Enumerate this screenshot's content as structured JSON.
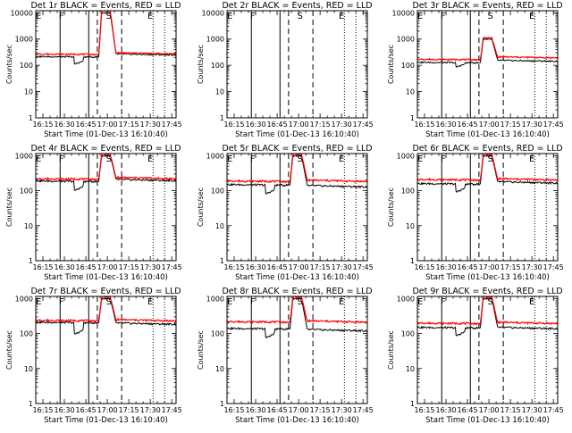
{
  "chart_data": {
    "type": "line",
    "x_tick_labels": [
      "16:15",
      "16:30",
      "16:45",
      "17:00",
      "17:15",
      "17:30",
      "17:45"
    ],
    "x_tick_minutes": [
      15,
      30,
      45,
      60,
      75,
      90,
      105
    ],
    "xlim_minutes": [
      10,
      108
    ],
    "xlabel": "Start Time (01-Dec-13 16:10:40)",
    "ylabel": "Counts/sec",
    "yscale": "log",
    "y_tick_labels": [
      "1",
      "10",
      "100",
      "1000"
    ],
    "y_tick_values": [
      1,
      10,
      100,
      1000
    ],
    "colors": {
      "events": "#000000",
      "lld": "#ff0000"
    },
    "flag_labels": [
      "E",
      "F",
      "S",
      "E"
    ],
    "flag_minutes": [
      12,
      28,
      61,
      90
    ],
    "panels": [
      {
        "title": "Det 1r  BLACK = Events, RED = LLD",
        "ylim": [
          1,
          12000
        ],
        "y_tick_labels": [
          "1",
          "10",
          "100",
          "1000",
          "10000"
        ],
        "y_tick_values": [
          1,
          10,
          100,
          1000,
          10000
        ],
        "vlines": {
          "solid": [
            27,
            47
          ],
          "dashed": [
            53,
            70
          ],
          "dotted": [
            92,
            100
          ]
        },
        "events": {
          "base": 215,
          "dip_level": 110,
          "dip": [
            37,
            43
          ],
          "peak_level": 10000,
          "peak": [
            56,
            62
          ],
          "tail": 270
        },
        "lld": {
          "base": 270,
          "peak_level": 12000,
          "tail": 300
        }
      },
      {
        "title": "Det 2r  BLACK = Events, RED = LLD",
        "ylim": [
          1,
          12000
        ],
        "y_tick_labels": [
          "1",
          "10",
          "100",
          "1000",
          "10000"
        ],
        "y_tick_values": [
          1,
          10,
          100,
          1000,
          10000
        ],
        "vlines": {
          "solid": [
            27,
            47
          ],
          "dashed": [
            53,
            70
          ],
          "dotted": [
            92,
            100
          ]
        },
        "events": null,
        "lld": null
      },
      {
        "title": "Det 3r  BLACK = Events, RED = LLD",
        "ylim": [
          1,
          12000
        ],
        "y_tick_labels": [
          "1",
          "10",
          "100",
          "1000",
          "10000"
        ],
        "y_tick_values": [
          1,
          10,
          100,
          1000,
          10000
        ],
        "vlines": {
          "solid": [
            27,
            47
          ],
          "dashed": [
            53,
            70
          ],
          "dotted": [
            92,
            100
          ]
        },
        "events": {
          "base": 130,
          "dip_level": 85,
          "dip": [
            37,
            43
          ],
          "peak_level": 1000,
          "peak": [
            56,
            62
          ],
          "tail": 155
        },
        "lld": {
          "base": 170,
          "peak_level": 1100,
          "tail": 210
        }
      },
      {
        "title": "Det 4r  BLACK = Events, RED = LLD",
        "ylim": [
          1,
          1150
        ],
        "y_tick_labels": [
          "1",
          "10",
          "100",
          "1000"
        ],
        "y_tick_values": [
          1,
          10,
          100,
          1000
        ],
        "vlines": {
          "solid": [
            27,
            47
          ],
          "dashed": [
            53,
            70
          ],
          "dotted": [
            92,
            100
          ]
        },
        "events": {
          "base": 190,
          "dip_level": 100,
          "dip": [
            37,
            43
          ],
          "peak_level": 1000,
          "peak": [
            56,
            62
          ],
          "tail": 210
        },
        "lld": {
          "base": 220,
          "peak_level": 1100,
          "tail": 240
        }
      },
      {
        "title": "Det 5r  BLACK = Events, RED = LLD",
        "ylim": [
          1,
          1150
        ],
        "y_tick_labels": [
          "1",
          "10",
          "100",
          "1000"
        ],
        "y_tick_values": [
          1,
          10,
          100,
          1000
        ],
        "vlines": {
          "solid": [
            27,
            47
          ],
          "dashed": [
            53,
            70
          ],
          "dotted": [
            92,
            100
          ]
        },
        "events": {
          "base": 150,
          "dip_level": 80,
          "dip": [
            37,
            43
          ],
          "peak_level": 1000,
          "peak": [
            56,
            62
          ],
          "tail": 140
        },
        "lld": {
          "base": 190,
          "peak_level": 1100,
          "tail": 200
        }
      },
      {
        "title": "Det 6r  BLACK = Events, RED = LLD",
        "ylim": [
          1,
          1150
        ],
        "y_tick_labels": [
          "1",
          "10",
          "100",
          "1000"
        ],
        "y_tick_values": [
          1,
          10,
          100,
          1000
        ],
        "vlines": {
          "solid": [
            27,
            47
          ],
          "dashed": [
            53,
            70
          ],
          "dotted": [
            92,
            100
          ]
        },
        "events": {
          "base": 160,
          "dip_level": 90,
          "dip": [
            37,
            43
          ],
          "peak_level": 1000,
          "peak": [
            56,
            62
          ],
          "tail": 180
        },
        "lld": {
          "base": 210,
          "peak_level": 1100,
          "tail": 220
        }
      },
      {
        "title": "Det 7r  BLACK = Events, RED = LLD",
        "ylim": [
          1,
          1150
        ],
        "y_tick_labels": [
          "1",
          "10",
          "100",
          "1000"
        ],
        "y_tick_values": [
          1,
          10,
          100,
          1000
        ],
        "vlines": {
          "solid": [
            27,
            47
          ],
          "dashed": [
            53,
            70
          ],
          "dotted": [
            92,
            100
          ]
        },
        "events": {
          "base": 210,
          "dip_level": 95,
          "dip": [
            37,
            43
          ],
          "peak_level": 1000,
          "peak": [
            56,
            62
          ],
          "tail": 200
        },
        "lld": {
          "base": 240,
          "peak_level": 1100,
          "tail": 250
        }
      },
      {
        "title": "Det 8r  BLACK = Events, RED = LLD",
        "ylim": [
          1,
          1150
        ],
        "y_tick_labels": [
          "1",
          "10",
          "100",
          "1000"
        ],
        "y_tick_values": [
          1,
          10,
          100,
          1000
        ],
        "vlines": {
          "solid": [
            27,
            47
          ],
          "dashed": [
            53,
            70
          ],
          "dotted": [
            92,
            100
          ]
        },
        "events": {
          "base": 140,
          "dip_level": 75,
          "dip": [
            37,
            43
          ],
          "peak_level": 1000,
          "peak": [
            56,
            62
          ],
          "tail": 130
        },
        "lld": {
          "base": 220,
          "peak_level": 1100,
          "tail": 230
        }
      },
      {
        "title": "Det 9r  BLACK = Events, RED = LLD",
        "ylim": [
          1,
          1150
        ],
        "y_tick_labels": [
          "1",
          "10",
          "100",
          "1000"
        ],
        "y_tick_values": [
          1,
          10,
          100,
          1000
        ],
        "vlines": {
          "solid": [
            27,
            47
          ],
          "dashed": [
            53,
            70
          ],
          "dotted": [
            92,
            100
          ]
        },
        "events": {
          "base": 150,
          "dip_level": 85,
          "dip": [
            37,
            43
          ],
          "peak_level": 1000,
          "peak": [
            56,
            62
          ],
          "tail": 150
        },
        "lld": {
          "base": 200,
          "peak_level": 1100,
          "tail": 210
        }
      }
    ]
  }
}
